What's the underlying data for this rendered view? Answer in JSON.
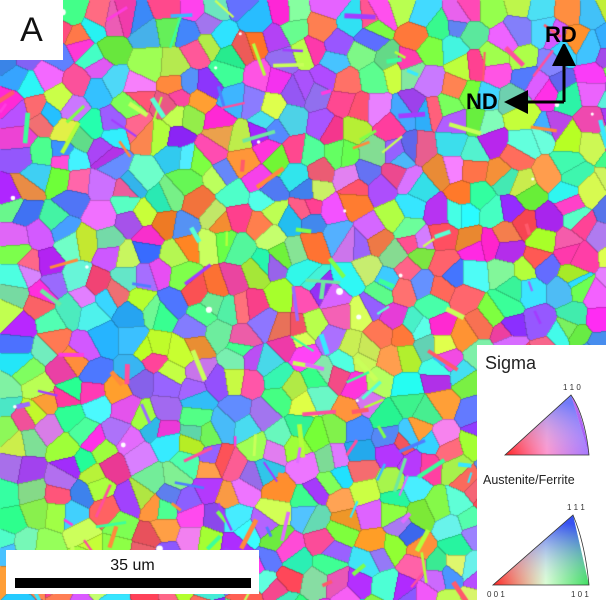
{
  "figure": {
    "panel_label": "A",
    "axes": {
      "rd_label": "RD",
      "nd_label": "ND"
    },
    "scale_bar": {
      "label": "35 um"
    },
    "legend": {
      "sigma_title": "Sigma",
      "sigma_corner_top": "1 1 0",
      "phase_title": "Austenite/Ferrite",
      "phase_corner_top": "1 1 1",
      "phase_corner_left": "0 0 1",
      "phase_corner_right": "1 0 1"
    }
  },
  "colors": {
    "background": "#ffffff",
    "grain_palette": [
      "#3cff9b",
      "#ff3ce0",
      "#9b6bff",
      "#38e8ff",
      "#7dff4c",
      "#ff4f9e",
      "#4f7dff",
      "#c9ff5a",
      "#ff8a3c",
      "#5affd4",
      "#a33cff",
      "#6fe8a0",
      "#e06bff",
      "#3cb8ff",
      "#b4ff3c",
      "#ff5a6b"
    ]
  }
}
